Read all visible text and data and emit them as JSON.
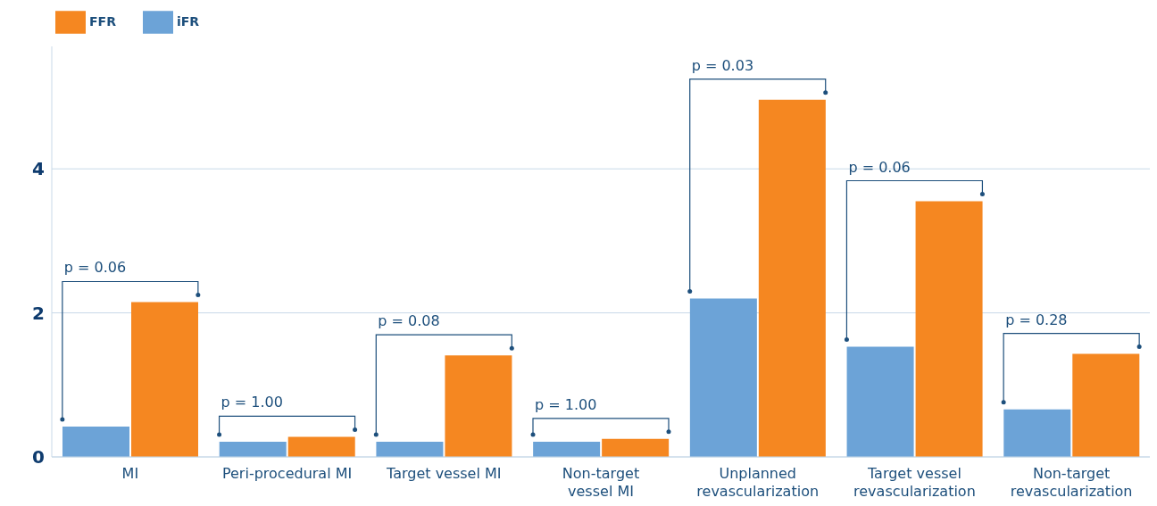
{
  "chart_data": {
    "type": "bar",
    "categories": [
      "MI",
      "Peri-procedural  MI",
      "Target vessel MI",
      "Non-target vessel MI",
      "Unplanned revascularization",
      "Target vessel revascularization",
      "Non-target revascularization"
    ],
    "series": [
      {
        "name": "iFR",
        "color": "#6ca3d7",
        "values": [
          0.42,
          0.21,
          0.21,
          0.21,
          2.2,
          1.53,
          0.66
        ]
      },
      {
        "name": "FFR",
        "color": "#f58721",
        "values": [
          2.15,
          0.28,
          1.41,
          0.25,
          4.96,
          3.55,
          1.43
        ]
      }
    ],
    "ylim": [
      0,
      5.7
    ],
    "yticks": [
      0,
      2,
      4
    ],
    "grid": "y",
    "legend": "top left",
    "annotations": [
      "p = 0.06",
      "p = 1.00",
      "p = 0.08",
      "p = 1.00",
      "p = 0.03",
      "p = 0.06",
      "p = 0.28"
    ]
  }
}
